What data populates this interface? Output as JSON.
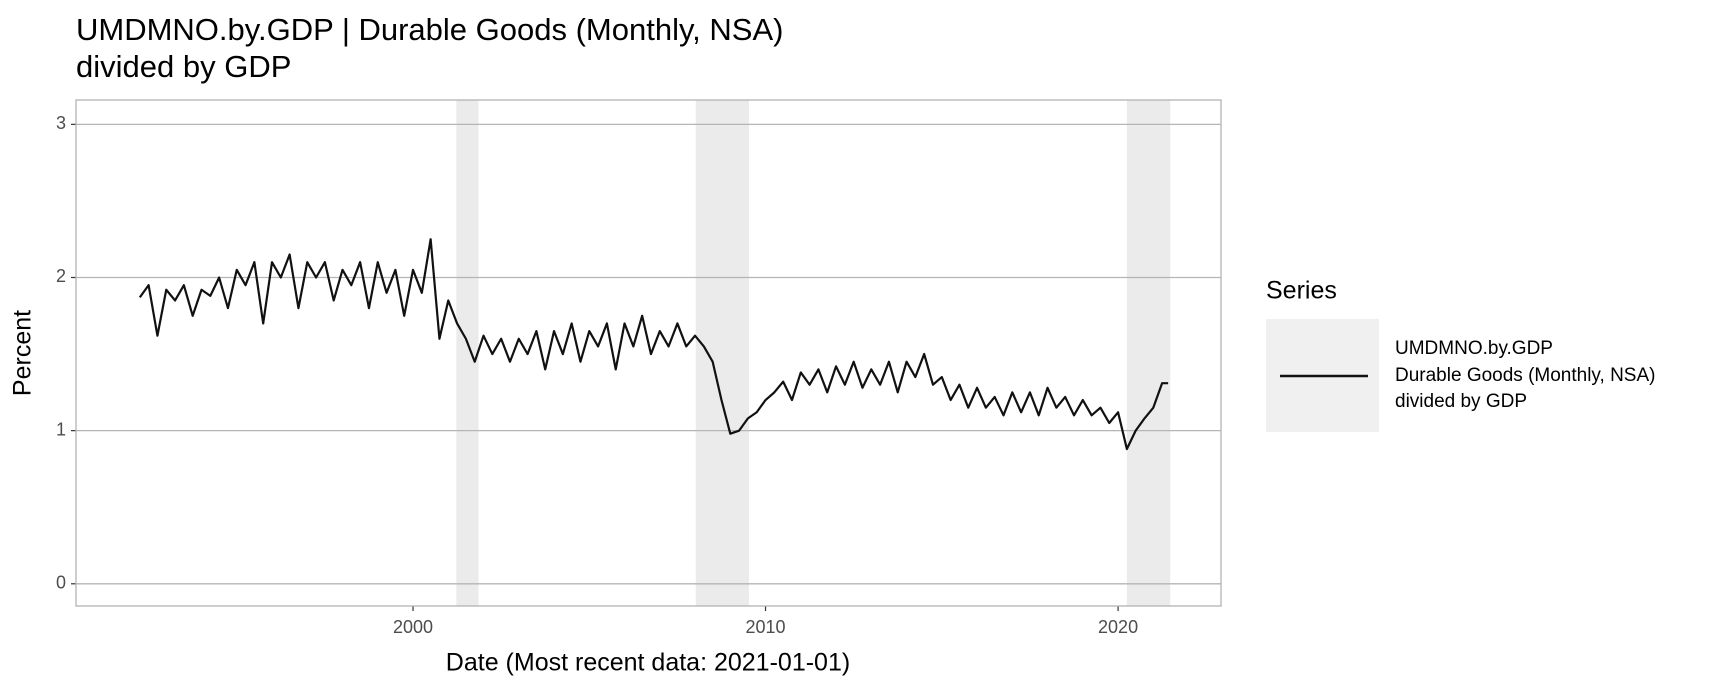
{
  "chart_data": {
    "type": "line",
    "title": "UMDMNO.by.GDP | Durable Goods (Monthly, NSA)\ndivided by GDP",
    "x_label": "Date (Most recent data: 2021-01-01)",
    "y_label": "Percent",
    "legend_title": "Series",
    "legend": "right",
    "grid": true,
    "xlim": [
      1990.44,
      2022.92
    ],
    "ylim": [
      -0.145,
      3.159
    ],
    "xticks": [
      2000,
      2010,
      2020
    ],
    "yticks": [
      0,
      1,
      2,
      3
    ],
    "recession_color": "#ebebeb",
    "recessions": [
      [
        2001.23,
        2001.86
      ],
      [
        2008.02,
        2009.53
      ],
      [
        2020.25,
        2021.48
      ]
    ],
    "x": [
      1992.25,
      1992.5,
      1992.75,
      1993,
      1993.25,
      1993.5,
      1993.75,
      1994,
      1994.25,
      1994.5,
      1994.75,
      1995,
      1995.25,
      1995.5,
      1995.75,
      1996,
      1996.25,
      1996.5,
      1996.75,
      1997,
      1997.25,
      1997.5,
      1997.75,
      1998,
      1998.25,
      1998.5,
      1998.75,
      1999,
      1999.25,
      1999.5,
      1999.75,
      2000,
      2000.25,
      2000.5,
      2000.75,
      2001,
      2001.25,
      2001.5,
      2001.75,
      2002,
      2002.25,
      2002.5,
      2002.75,
      2003,
      2003.25,
      2003.5,
      2003.75,
      2004,
      2004.25,
      2004.5,
      2004.75,
      2005,
      2005.25,
      2005.5,
      2005.75,
      2006,
      2006.25,
      2006.5,
      2006.75,
      2007,
      2007.25,
      2007.5,
      2007.75,
      2008,
      2008.25,
      2008.5,
      2008.75,
      2009,
      2009.25,
      2009.5,
      2009.75,
      2010,
      2010.25,
      2010.5,
      2010.75,
      2011,
      2011.25,
      2011.5,
      2011.75,
      2012,
      2012.25,
      2012.5,
      2012.75,
      2013,
      2013.25,
      2013.5,
      2013.75,
      2014,
      2014.25,
      2014.5,
      2014.75,
      2015,
      2015.25,
      2015.5,
      2015.75,
      2016,
      2016.25,
      2016.5,
      2016.75,
      2017,
      2017.25,
      2017.5,
      2017.75,
      2018,
      2018.25,
      2018.5,
      2018.75,
      2019,
      2019.25,
      2019.5,
      2019.75,
      2020,
      2020.25,
      2020.5,
      2020.75,
      2021,
      2021.25,
      2021.42
    ],
    "series": [
      {
        "name": "UMDMNO.by.GDP\nDurable Goods (Monthly, NSA)\ndivided by GDP",
        "color": "#111111",
        "values": [
          1.87,
          1.95,
          1.62,
          1.92,
          1.85,
          1.95,
          1.75,
          1.92,
          1.88,
          2.0,
          1.8,
          2.05,
          1.95,
          2.1,
          1.7,
          2.1,
          2.0,
          2.15,
          1.8,
          2.1,
          2.0,
          2.1,
          1.85,
          2.05,
          1.95,
          2.1,
          1.8,
          2.1,
          1.9,
          2.05,
          1.75,
          2.05,
          1.9,
          2.25,
          1.6,
          1.85,
          1.7,
          1.6,
          1.45,
          1.62,
          1.5,
          1.6,
          1.45,
          1.6,
          1.5,
          1.65,
          1.4,
          1.65,
          1.5,
          1.7,
          1.45,
          1.65,
          1.55,
          1.7,
          1.4,
          1.7,
          1.55,
          1.75,
          1.5,
          1.65,
          1.55,
          1.7,
          1.55,
          1.62,
          1.55,
          1.45,
          1.2,
          0.98,
          1.0,
          1.08,
          1.12,
          1.2,
          1.25,
          1.32,
          1.2,
          1.38,
          1.3,
          1.4,
          1.25,
          1.42,
          1.3,
          1.45,
          1.28,
          1.4,
          1.3,
          1.45,
          1.25,
          1.45,
          1.35,
          1.5,
          1.3,
          1.35,
          1.2,
          1.3,
          1.15,
          1.28,
          1.15,
          1.22,
          1.1,
          1.25,
          1.12,
          1.25,
          1.1,
          1.28,
          1.15,
          1.22,
          1.1,
          1.2,
          1.1,
          1.15,
          1.05,
          1.12,
          0.88,
          1.0,
          1.08,
          1.15,
          1.31,
          1.31
        ]
      }
    ]
  }
}
